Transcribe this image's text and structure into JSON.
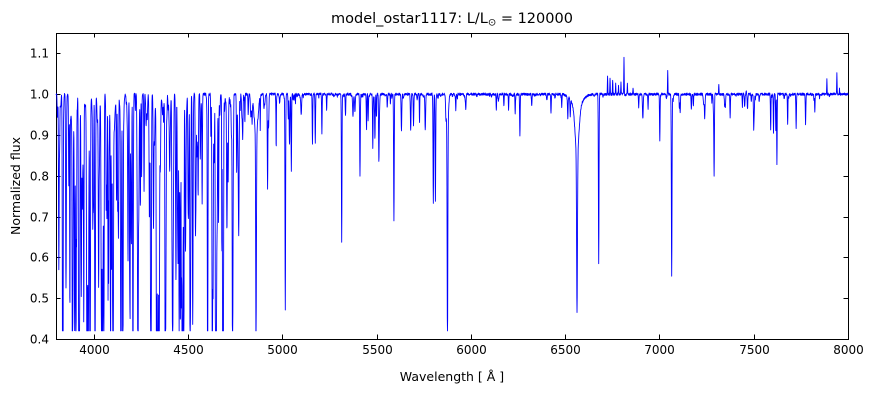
{
  "figure": {
    "background": "#ffffff",
    "axis_color": "#000000",
    "title_parts": {
      "pre": "model_ostar1117: L/L",
      "sub": "⊙",
      "post": " = 120000"
    }
  },
  "chart_data": {
    "type": "line",
    "title": "model_ostar1117: L/L⊙ = 120000",
    "xlabel": "Wavelength [ Å ]",
    "ylabel": "Normalized flux",
    "xlim": [
      3800,
      8000
    ],
    "ylim": [
      0.4,
      1.15
    ],
    "xticks": [
      4000,
      4500,
      5000,
      5500,
      6000,
      6500,
      7000,
      7500,
      8000
    ],
    "xtick_labels": [
      "4000",
      "4500",
      "5000",
      "5500",
      "6000",
      "6500",
      "7000",
      "7500",
      "8000"
    ],
    "yticks": [
      0.4,
      0.5,
      0.6,
      0.7,
      0.8,
      0.9,
      1.0,
      1.1
    ],
    "ytick_labels": [
      "0.4",
      "0.5",
      "0.6",
      "0.7",
      "0.8",
      "0.9",
      "1.0",
      "1.1"
    ],
    "grid": false,
    "legend": null,
    "series_name": "normalized flux spectrum",
    "series_color": "#0000ff",
    "continuum_level": 1.0,
    "sample_step_angstrom": 1,
    "absorption_lines": [
      [
        3815,
        0.66,
        1.5
      ],
      [
        3835,
        0.62,
        1.8
      ],
      [
        3868,
        0.78,
        1.5
      ],
      [
        3889,
        0.545,
        1.8
      ],
      [
        3889,
        0.93,
        8
      ],
      [
        3920,
        0.8,
        1.3
      ],
      [
        3933,
        0.82,
        1.3
      ],
      [
        3964,
        0.8,
        1.5
      ],
      [
        3970,
        0.53,
        1.8
      ],
      [
        3970,
        0.92,
        8
      ],
      [
        3995,
        0.75,
        1.3
      ],
      [
        4009,
        0.78,
        1.4
      ],
      [
        4026,
        0.6,
        1.8
      ],
      [
        4026,
        0.95,
        6
      ],
      [
        4070,
        0.7,
        1.6
      ],
      [
        4089,
        0.67,
        1.5
      ],
      [
        4102,
        0.515,
        1.9
      ],
      [
        4102,
        0.91,
        9
      ],
      [
        4121,
        0.75,
        1.4
      ],
      [
        4144,
        0.7,
        1.6
      ],
      [
        4200,
        0.76,
        1.6
      ],
      [
        4233,
        0.77,
        1.4
      ],
      [
        4254,
        0.8,
        1.3
      ],
      [
        4267,
        0.76,
        1.4
      ],
      [
        4317,
        0.74,
        1.5
      ],
      [
        4340,
        0.52,
        1.9
      ],
      [
        4340,
        0.91,
        9
      ],
      [
        4379,
        0.56,
        1.6
      ],
      [
        4415,
        0.7,
        1.5
      ],
      [
        4437,
        0.8,
        1.3
      ],
      [
        4471,
        0.51,
        1.8
      ],
      [
        4471,
        0.93,
        6
      ],
      [
        4511,
        0.78,
        1.4
      ],
      [
        4542,
        0.74,
        1.6
      ],
      [
        4575,
        0.73,
        1.4
      ],
      [
        4604,
        0.66,
        1.5
      ],
      [
        4630,
        0.66,
        1.5
      ],
      [
        4649,
        0.6,
        1.5
      ],
      [
        4662,
        0.71,
        1.4
      ],
      [
        4686,
        0.68,
        1.6
      ],
      [
        4713,
        0.79,
        1.4
      ],
      [
        4861,
        0.53,
        1.9
      ],
      [
        4861,
        0.9,
        9
      ],
      [
        4922,
        0.77,
        1.6
      ],
      [
        5016,
        0.59,
        1.6
      ],
      [
        5048,
        0.81,
        1.4
      ],
      [
        5160,
        0.88,
        1.4
      ],
      [
        5175,
        0.88,
        1.4
      ],
      [
        5210,
        0.9,
        1.3
      ],
      [
        5315,
        0.64,
        1.5
      ],
      [
        5412,
        0.8,
        1.6
      ],
      [
        5480,
        0.87,
        1.4
      ],
      [
        5512,
        0.86,
        1.4
      ],
      [
        5592,
        0.69,
        1.6
      ],
      [
        5696,
        0.93,
        1.5
      ],
      [
        5801,
        0.73,
        1.6
      ],
      [
        5812,
        0.74,
        1.6
      ],
      [
        5876,
        0.45,
        1.8
      ],
      [
        5876,
        0.92,
        5
      ],
      [
        5920,
        0.96,
        1.2
      ],
      [
        6135,
        0.96,
        1.3
      ],
      [
        6175,
        0.97,
        1.2
      ],
      [
        6200,
        0.96,
        1.2
      ],
      [
        6235,
        0.955,
        1.2
      ],
      [
        6260,
        0.895,
        1.4
      ],
      [
        6425,
        0.955,
        1.5
      ],
      [
        6482,
        0.97,
        1.3
      ],
      [
        6527,
        0.96,
        1.5
      ],
      [
        6563,
        0.61,
        2.2
      ],
      [
        6563,
        0.885,
        10
      ],
      [
        6563,
        0.97,
        28
      ],
      [
        6678,
        0.585,
        1.6
      ],
      [
        6890,
        0.965,
        1.3
      ],
      [
        6912,
        0.95,
        2.0
      ],
      [
        7002,
        0.895,
        1.4
      ],
      [
        7065,
        0.555,
        1.7
      ],
      [
        7110,
        0.955,
        1.3
      ],
      [
        7180,
        0.97,
        1.2
      ],
      [
        7240,
        0.965,
        1.2
      ],
      [
        7290,
        0.805,
        1.5
      ],
      [
        7350,
        0.97,
        1.2
      ],
      [
        7375,
        0.94,
        1.3
      ],
      [
        7440,
        0.97,
        1.2
      ],
      [
        7500,
        0.945,
        1.3
      ],
      [
        7590,
        0.91,
        1.3
      ],
      [
        7605,
        0.905,
        1.3
      ],
      [
        7617,
        0.91,
        1.2
      ],
      [
        7623,
        0.828,
        1.3
      ],
      [
        7680,
        0.925,
        1.3
      ],
      [
        7725,
        0.915,
        1.4
      ],
      [
        7775,
        0.93,
        1.4
      ],
      [
        7824,
        0.955,
        1.3
      ]
    ],
    "emission_lines": [
      [
        6725,
        1.045,
        1.1
      ],
      [
        6738,
        1.04,
        1.1
      ],
      [
        6752,
        1.035,
        1.1
      ],
      [
        6768,
        1.025,
        1.1
      ],
      [
        6783,
        1.02,
        1.0
      ],
      [
        6796,
        1.03,
        1.0
      ],
      [
        6812,
        1.088,
        1.1
      ],
      [
        6830,
        1.025,
        1.0
      ],
      [
        6860,
        1.015,
        1.0
      ],
      [
        7044,
        1.063,
        1.0
      ],
      [
        7315,
        1.025,
        1.0
      ],
      [
        7460,
        1.01,
        1.0
      ],
      [
        7888,
        1.037,
        1.0
      ],
      [
        7941,
        1.054,
        1.0
      ],
      [
        7955,
        1.012,
        1.0
      ]
    ],
    "line_forest_regions": [
      {
        "from": 3800,
        "to": 4025,
        "count": 70,
        "dmin": 0.02,
        "dmax": 0.3
      },
      {
        "from": 4025,
        "to": 4420,
        "count": 110,
        "dmin": 0.02,
        "dmax": 0.28
      },
      {
        "from": 4420,
        "to": 4780,
        "count": 100,
        "dmin": 0.02,
        "dmax": 0.26
      },
      {
        "from": 4780,
        "to": 5050,
        "count": 30,
        "dmin": 0.01,
        "dmax": 0.08
      },
      {
        "from": 5050,
        "to": 5900,
        "count": 45,
        "dmin": 0.005,
        "dmax": 0.05
      },
      {
        "from": 5900,
        "to": 8000,
        "count": 70,
        "dmin": 0.003,
        "dmax": 0.02
      }
    ],
    "noise": {
      "seed": 1117,
      "jitter_amp": 0.003
    },
    "flux_clamp": [
      0.42,
      1.149
    ]
  }
}
